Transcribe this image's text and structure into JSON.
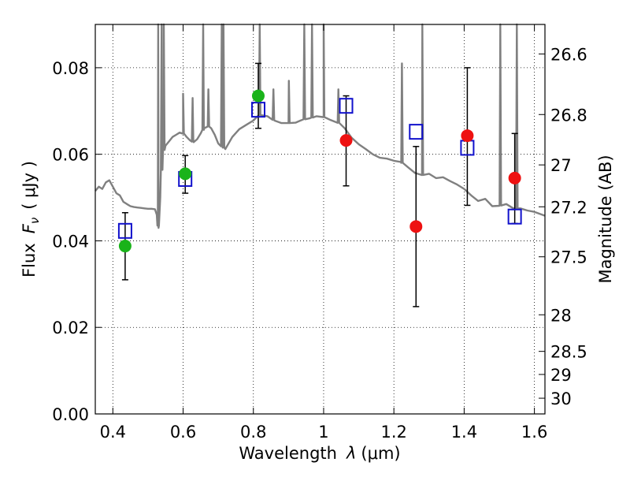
{
  "chart_data": {
    "type": "scatter",
    "title": "",
    "xlabel": "Wavelength",
    "xlabel_symbol": "λ",
    "xlabel_unit": "(μm)",
    "ylabel": "Flux",
    "ylabel_symbol": "F",
    "ylabel_subscript": "ν",
    "ylabel_unit": "( μJy )",
    "y2label": "Magnitude (AB)",
    "xlim": [
      0.35,
      1.63
    ],
    "ylim": [
      0.0,
      0.09
    ],
    "grid": true,
    "x_ticks": [
      {
        "value": 0.4,
        "label": "0.4"
      },
      {
        "value": 0.6,
        "label": "0.6"
      },
      {
        "value": 0.8,
        "label": "0.8"
      },
      {
        "value": 1.0,
        "label": "1"
      },
      {
        "value": 1.2,
        "label": "1.2"
      },
      {
        "value": 1.4,
        "label": "1.4"
      },
      {
        "value": 1.6,
        "label": "1.6"
      }
    ],
    "y_ticks": [
      {
        "value": 0.0,
        "label": "0.00"
      },
      {
        "value": 0.02,
        "label": "0.02"
      },
      {
        "value": 0.04,
        "label": "0.04"
      },
      {
        "value": 0.06,
        "label": "0.06"
      },
      {
        "value": 0.08,
        "label": "0.08"
      }
    ],
    "y2_ticks": [
      {
        "mag": 26.6,
        "label": "26.6"
      },
      {
        "mag": 26.8,
        "label": "26.8"
      },
      {
        "mag": 27.0,
        "label": "27"
      },
      {
        "mag": 27.2,
        "label": "27.2"
      },
      {
        "mag": 27.5,
        "label": "27.5"
      },
      {
        "mag": 28.0,
        "label": "28"
      },
      {
        "mag": 28.5,
        "label": "28.5"
      },
      {
        "mag": 29.0,
        "label": "29"
      },
      {
        "mag": 30.0,
        "label": "30"
      }
    ],
    "series": [
      {
        "marker": "filled-circle",
        "color": "#1ab31a",
        "points": [
          {
            "x": 0.435,
            "y": 0.0388,
            "err_low": 0.031,
            "err_high": 0.0465
          },
          {
            "x": 0.606,
            "y": 0.0555,
            "err_low": 0.051,
            "err_high": 0.0597
          },
          {
            "x": 0.814,
            "y": 0.0735,
            "err_low": 0.066,
            "err_high": 0.081
          }
        ]
      },
      {
        "marker": "filled-circle",
        "color": "#ee1111",
        "points": [
          {
            "x": 1.064,
            "y": 0.0632,
            "err_low": 0.0527,
            "err_high": 0.0735
          },
          {
            "x": 1.263,
            "y": 0.0433,
            "err_low": 0.0248,
            "err_high": 0.0618
          },
          {
            "x": 1.409,
            "y": 0.0643,
            "err_low": 0.0482,
            "err_high": 0.08
          },
          {
            "x": 1.544,
            "y": 0.0545,
            "err_low": 0.044,
            "err_high": 0.0648
          }
        ]
      },
      {
        "marker": "open-square",
        "color": "#1111cc",
        "points": [
          {
            "x": 0.435,
            "y": 0.0423
          },
          {
            "x": 0.606,
            "y": 0.0543
          },
          {
            "x": 0.814,
            "y": 0.0703
          },
          {
            "x": 1.064,
            "y": 0.0712
          },
          {
            "x": 1.263,
            "y": 0.0652
          },
          {
            "x": 1.409,
            "y": 0.0615
          },
          {
            "x": 1.544,
            "y": 0.0456
          }
        ]
      }
    ],
    "spectrum": {
      "color": "#808080",
      "x": [
        0.35,
        0.36,
        0.37,
        0.38,
        0.39,
        0.4,
        0.41,
        0.42,
        0.43,
        0.44,
        0.45,
        0.46,
        0.47,
        0.48,
        0.49,
        0.5,
        0.51,
        0.52,
        0.525,
        0.528,
        0.53,
        0.535,
        0.54,
        0.545,
        0.55,
        0.56,
        0.57,
        0.58,
        0.59,
        0.6,
        0.61,
        0.62,
        0.63,
        0.64,
        0.65,
        0.66,
        0.67,
        0.68,
        0.69,
        0.7,
        0.72,
        0.74,
        0.76,
        0.78,
        0.8,
        0.82,
        0.84,
        0.86,
        0.88,
        0.9,
        0.92,
        0.94,
        0.96,
        0.98,
        1.0,
        1.02,
        1.04,
        1.06,
        1.08,
        1.1,
        1.12,
        1.14,
        1.16,
        1.18,
        1.2,
        1.22,
        1.24,
        1.26,
        1.28,
        1.3,
        1.32,
        1.34,
        1.36,
        1.38,
        1.4,
        1.42,
        1.44,
        1.46,
        1.48,
        1.5,
        1.52,
        1.54,
        1.56,
        1.58,
        1.6,
        1.63
      ],
      "y": [
        0.0515,
        0.0525,
        0.052,
        0.0535,
        0.054,
        0.0525,
        0.051,
        0.0505,
        0.049,
        0.0485,
        0.048,
        0.0478,
        0.0477,
        0.0476,
        0.0475,
        0.0474,
        0.0474,
        0.0473,
        0.046,
        0.044,
        0.043,
        0.05,
        0.058,
        0.061,
        0.062,
        0.063,
        0.064,
        0.0645,
        0.065,
        0.0648,
        0.064,
        0.0632,
        0.0628,
        0.0635,
        0.0648,
        0.066,
        0.0665,
        0.066,
        0.0645,
        0.0625,
        0.0612,
        0.064,
        0.0658,
        0.0668,
        0.0678,
        0.0692,
        0.0688,
        0.0678,
        0.0672,
        0.0672,
        0.0673,
        0.068,
        0.0683,
        0.0688,
        0.0686,
        0.0679,
        0.0674,
        0.066,
        0.0638,
        0.0623,
        0.0612,
        0.06,
        0.0592,
        0.059,
        0.0585,
        0.0582,
        0.057,
        0.0557,
        0.0552,
        0.0555,
        0.0545,
        0.0547,
        0.0538,
        0.053,
        0.052,
        0.0505,
        0.0492,
        0.0497,
        0.048,
        0.0481,
        0.0485,
        0.0475,
        0.0475,
        0.047,
        0.0467,
        0.0458
      ],
      "emission_lines": [
        {
          "x": 0.529,
          "peak": 0.09
        },
        {
          "x": 0.539,
          "peak": 0.09
        },
        {
          "x": 0.545,
          "peak": 0.09
        },
        {
          "x": 0.6,
          "peak": 0.074
        },
        {
          "x": 0.627,
          "peak": 0.073
        },
        {
          "x": 0.657,
          "peak": 0.09
        },
        {
          "x": 0.672,
          "peak": 0.075
        },
        {
          "x": 0.71,
          "peak": 0.09
        },
        {
          "x": 0.715,
          "peak": 0.09
        },
        {
          "x": 0.818,
          "peak": 0.09
        },
        {
          "x": 0.857,
          "peak": 0.075
        },
        {
          "x": 0.901,
          "peak": 0.077
        },
        {
          "x": 0.945,
          "peak": 0.09
        },
        {
          "x": 0.967,
          "peak": 0.09
        },
        {
          "x": 1.0,
          "peak": 0.09
        },
        {
          "x": 1.042,
          "peak": 0.075
        },
        {
          "x": 1.223,
          "peak": 0.081
        },
        {
          "x": 1.281,
          "peak": 0.09
        },
        {
          "x": 1.503,
          "peak": 0.09
        },
        {
          "x": 1.55,
          "peak": 0.09
        }
      ]
    }
  }
}
